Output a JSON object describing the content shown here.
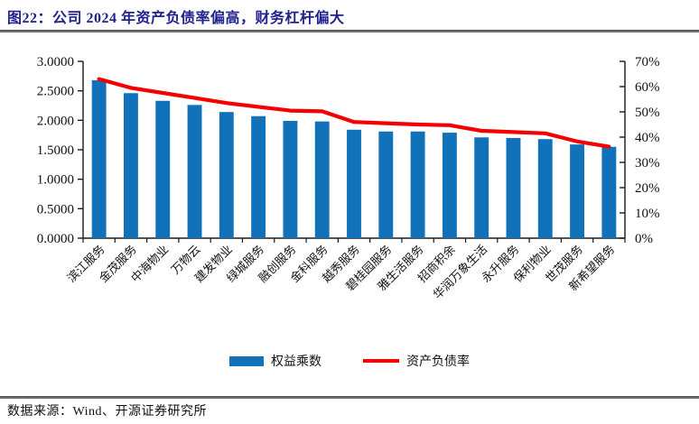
{
  "title": "图22：公司 2024 年资产负债率偏高，财务杠杆偏大",
  "source": "数据来源：Wind、开源证券研究所",
  "colors": {
    "bar": "#1172BA",
    "line": "#F40000",
    "title": "#21218F",
    "axis": "#1a1a1a",
    "rule": "#6F6F6F"
  },
  "legend": {
    "items": [
      {
        "label": "权益乘数",
        "type": "bar"
      },
      {
        "label": "资产负债率",
        "type": "line"
      }
    ]
  },
  "chart_data": {
    "type": "bar+line combo",
    "categories": [
      "滨江服务",
      "金茂服务",
      "中海物业",
      "万物云",
      "建发物业",
      "绿城服务",
      "融创服务",
      "金科服务",
      "越秀服务",
      "碧桂园服务",
      "雅生活服务",
      "招商积余",
      "华润万象生活",
      "永升服务",
      "保利物业",
      "世茂服务",
      "新希望服务"
    ],
    "series": [
      {
        "name": "权益乘数",
        "type": "bar",
        "axis": "left",
        "values": [
          2.68,
          2.46,
          2.33,
          2.26,
          2.14,
          2.07,
          1.99,
          1.98,
          1.84,
          1.81,
          1.81,
          1.79,
          1.71,
          1.7,
          1.68,
          1.59,
          1.55
        ]
      },
      {
        "name": "资产负债率",
        "type": "line",
        "axis": "right",
        "values": [
          63.0,
          59.5,
          57.5,
          55.5,
          53.5,
          52.0,
          50.5,
          50.2,
          46.0,
          45.5,
          45.0,
          44.7,
          42.5,
          42.0,
          41.5,
          38.3,
          36.2
        ]
      }
    ],
    "left_axis": {
      "min": 0,
      "max": 3,
      "ticks": [
        "3.0000",
        "2.5000",
        "2.0000",
        "1.5000",
        "1.0000",
        "0.5000",
        "0.0000"
      ]
    },
    "right_axis": {
      "min": 0,
      "max": 70,
      "ticks": [
        "70%",
        "60%",
        "50%",
        "40%",
        "30%",
        "20%",
        "10%",
        "0%"
      ]
    },
    "grid": false,
    "legend_position": "bottom"
  }
}
